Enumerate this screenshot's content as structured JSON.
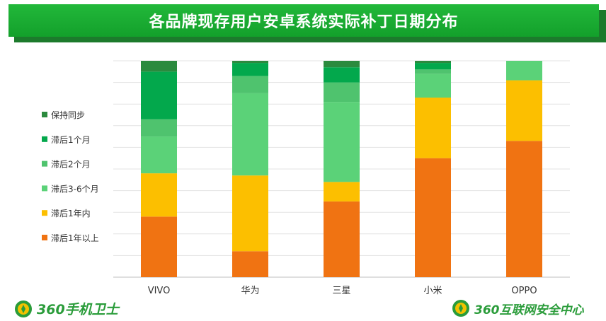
{
  "header": {
    "title": "各品牌现存用户安卓系统实际补丁日期分布"
  },
  "footer": {
    "left_logo_text": "360手机卫士",
    "right_logo_text": "360互联网安全中心"
  },
  "colors": {
    "title_bar": "#1aa832",
    "title_shadow": "#1c7a2c",
    "logo_green": "#2a9c3a",
    "logo_yellow": "#f2c200"
  },
  "chart_data": {
    "type": "bar",
    "stacked": true,
    "normalized": true,
    "categories": [
      "VIVO",
      "华为",
      "三星",
      "小米",
      "OPPO"
    ],
    "ylim": [
      0,
      100
    ],
    "grid": true,
    "legend_position": "left",
    "series": [
      {
        "name": "滞后1年以上",
        "color": "#f07312",
        "values": [
          28,
          12,
          35,
          55,
          63
        ]
      },
      {
        "name": "滞后1年内",
        "color": "#fcbf00",
        "values": [
          20,
          35,
          9,
          28,
          28
        ]
      },
      {
        "name": "滞后3-6个月",
        "color": "#5bd278",
        "values": [
          17,
          38,
          37,
          11,
          9
        ]
      },
      {
        "name": "滞后2个月",
        "color": "#4fc36e",
        "values": [
          8,
          8,
          9,
          2,
          0
        ]
      },
      {
        "name": "滞后1个月",
        "color": "#03a84c",
        "values": [
          22,
          6,
          7,
          3,
          0
        ]
      },
      {
        "name": "保持同步",
        "color": "#2b8a3e",
        "values": [
          5,
          1,
          3,
          1,
          0
        ]
      }
    ]
  }
}
